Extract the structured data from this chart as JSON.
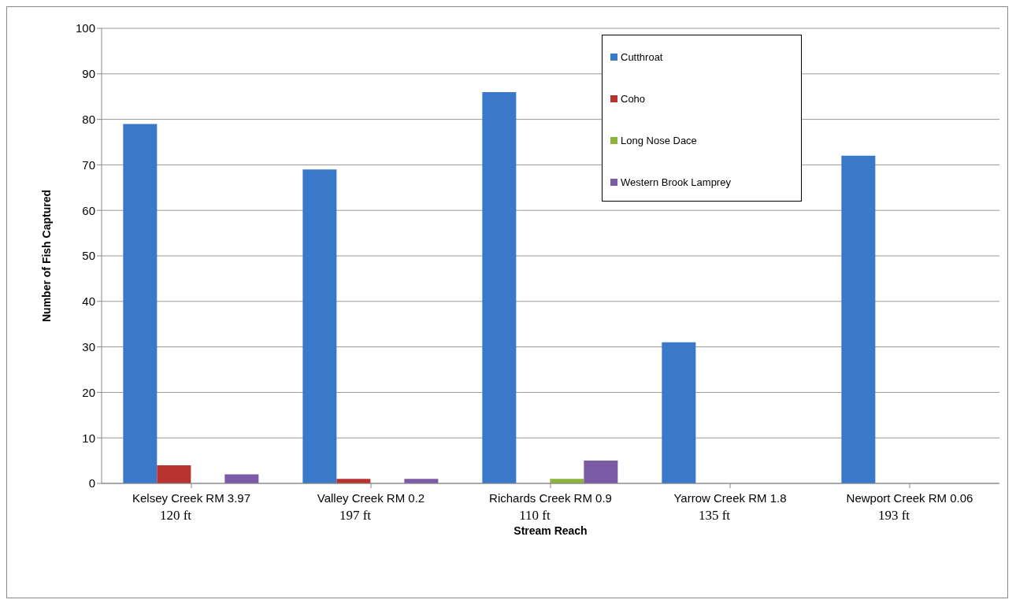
{
  "chart_data": {
    "type": "bar",
    "xlabel": "Stream Reach",
    "ylabel": "Number of Fish Captured",
    "categories": [
      "Kelsey Creek RM 3.97\n120 ft",
      "Valley Creek RM 0.2\n197 ft",
      "Richards Creek RM 0.9\n110 ft",
      "Yarrow Creek RM 1.8\n135 ft",
      "Newport Creek RM 0.06\n193 ft"
    ],
    "series": [
      {
        "name": "Cutthroat",
        "color": "#3a78c9",
        "values": [
          79,
          69,
          86,
          31,
          72
        ]
      },
      {
        "name": "Coho",
        "color": "#b8322f",
        "values": [
          4,
          1,
          0,
          0,
          0
        ]
      },
      {
        "name": "Long Nose Dace",
        "color": "#8cb33c",
        "values": [
          0,
          0,
          1,
          0,
          0
        ]
      },
      {
        "name": "Western Brook Lamprey",
        "color": "#7b5aa6",
        "values": [
          2,
          1,
          5,
          0,
          0
        ]
      }
    ],
    "ylim": [
      0,
      100
    ],
    "yticks": [
      0,
      10,
      20,
      30,
      40,
      50,
      60,
      70,
      80,
      90,
      100
    ],
    "grid": "y",
    "legend": "top right"
  }
}
